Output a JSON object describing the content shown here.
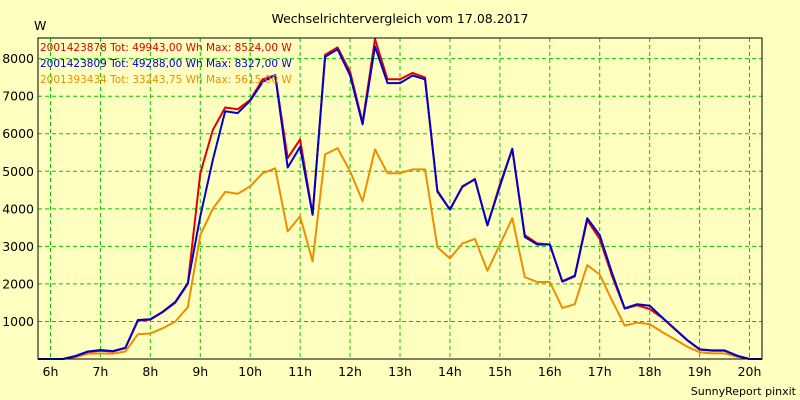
{
  "chart_data": {
    "type": "line",
    "title": "Wechselrichtervergleich vom 17.08.2017",
    "ylabel": "W",
    "ylim": [
      0,
      8550
    ],
    "yticks": [
      1000,
      2000,
      3000,
      4000,
      5000,
      6000,
      7000,
      8000
    ],
    "xlim": [
      5.75,
      20.25
    ],
    "xticks": [
      {
        "value": 6,
        "label": "6h"
      },
      {
        "value": 7,
        "label": "7h"
      },
      {
        "value": 8,
        "label": "8h"
      },
      {
        "value": 9,
        "label": "9h"
      },
      {
        "value": 10,
        "label": "10h"
      },
      {
        "value": 11,
        "label": "11h"
      },
      {
        "value": 12,
        "label": "12h"
      },
      {
        "value": 13,
        "label": "13h"
      },
      {
        "value": 14,
        "label": "14h"
      },
      {
        "value": 15,
        "label": "15h"
      },
      {
        "value": 16,
        "label": "16h"
      },
      {
        "value": 17,
        "label": "17h"
      },
      {
        "value": 18,
        "label": "18h"
      },
      {
        "value": 19,
        "label": "19h"
      },
      {
        "value": 20,
        "label": "20h"
      }
    ],
    "grid": true,
    "legend_position": "top-left",
    "series": [
      {
        "name": "2001423878",
        "legend": "2001423878 Tot: 49943,00 Wh Max: 8524,00 W",
        "color": "#e00000",
        "points": [
          [
            5.75,
            0
          ],
          [
            6,
            0
          ],
          [
            6.25,
            0
          ],
          [
            6.5,
            70
          ],
          [
            6.75,
            190
          ],
          [
            7,
            220
          ],
          [
            7.25,
            200
          ],
          [
            7.5,
            290
          ],
          [
            7.75,
            1020
          ],
          [
            8,
            1050
          ],
          [
            8.25,
            1250
          ],
          [
            8.5,
            1500
          ],
          [
            8.75,
            2000
          ],
          [
            9,
            4950
          ],
          [
            9.25,
            6100
          ],
          [
            9.5,
            6700
          ],
          [
            9.75,
            6650
          ],
          [
            10,
            6900
          ],
          [
            10.25,
            7450
          ],
          [
            10.5,
            7560
          ],
          [
            10.75,
            5350
          ],
          [
            11,
            5850
          ],
          [
            11.25,
            3850
          ],
          [
            11.5,
            8100
          ],
          [
            11.75,
            8300
          ],
          [
            12,
            7650
          ],
          [
            12.25,
            6300
          ],
          [
            12.5,
            8524
          ],
          [
            12.75,
            7450
          ],
          [
            13,
            7450
          ],
          [
            13.25,
            7620
          ],
          [
            13.5,
            7500
          ],
          [
            13.75,
            4450
          ],
          [
            14,
            3980
          ],
          [
            14.25,
            4580
          ],
          [
            14.5,
            4800
          ],
          [
            14.75,
            3560
          ],
          [
            15,
            4650
          ],
          [
            15.25,
            5600
          ],
          [
            15.5,
            3300
          ],
          [
            15.75,
            3080
          ],
          [
            16,
            3050
          ],
          [
            16.25,
            2060
          ],
          [
            16.5,
            2200
          ],
          [
            16.75,
            3700
          ],
          [
            17,
            3200
          ],
          [
            17.25,
            2200
          ],
          [
            17.5,
            1340
          ],
          [
            17.75,
            1430
          ],
          [
            18,
            1330
          ],
          [
            18.25,
            1100
          ],
          [
            18.5,
            800
          ],
          [
            18.75,
            500
          ],
          [
            19,
            250
          ],
          [
            19.25,
            220
          ],
          [
            19.5,
            220
          ],
          [
            19.75,
            80
          ],
          [
            20,
            0
          ],
          [
            20.25,
            0
          ]
        ]
      },
      {
        "name": "2001423809",
        "legend": "2001423809 Tot: 49288,00 Wh Max: 8327,00 W",
        "color": "#0000d0",
        "points": [
          [
            5.75,
            0
          ],
          [
            6,
            0
          ],
          [
            6.25,
            0
          ],
          [
            6.5,
            80
          ],
          [
            6.75,
            200
          ],
          [
            7,
            240
          ],
          [
            7.25,
            210
          ],
          [
            7.5,
            300
          ],
          [
            7.75,
            1040
          ],
          [
            8,
            1060
          ],
          [
            8.25,
            1260
          ],
          [
            8.5,
            1520
          ],
          [
            8.75,
            2020
          ],
          [
            9,
            3800
          ],
          [
            9.25,
            5300
          ],
          [
            9.5,
            6600
          ],
          [
            9.75,
            6550
          ],
          [
            10,
            6880
          ],
          [
            10.25,
            7380
          ],
          [
            10.5,
            7560
          ],
          [
            10.75,
            5100
          ],
          [
            11,
            5650
          ],
          [
            11.25,
            3840
          ],
          [
            11.5,
            8050
          ],
          [
            11.75,
            8250
          ],
          [
            12,
            7550
          ],
          [
            12.25,
            6250
          ],
          [
            12.5,
            8327
          ],
          [
            12.75,
            7350
          ],
          [
            13,
            7350
          ],
          [
            13.25,
            7550
          ],
          [
            13.5,
            7450
          ],
          [
            13.75,
            4480
          ],
          [
            14,
            3980
          ],
          [
            14.25,
            4600
          ],
          [
            14.5,
            4780
          ],
          [
            14.75,
            3560
          ],
          [
            15,
            4600
          ],
          [
            15.25,
            5600
          ],
          [
            15.5,
            3250
          ],
          [
            15.75,
            3050
          ],
          [
            16,
            3050
          ],
          [
            16.25,
            2070
          ],
          [
            16.5,
            2220
          ],
          [
            16.75,
            3750
          ],
          [
            17,
            3300
          ],
          [
            17.25,
            2280
          ],
          [
            17.5,
            1350
          ],
          [
            17.75,
            1460
          ],
          [
            18,
            1420
          ],
          [
            18.25,
            1110
          ],
          [
            18.5,
            810
          ],
          [
            18.75,
            510
          ],
          [
            19,
            260
          ],
          [
            19.25,
            230
          ],
          [
            19.5,
            230
          ],
          [
            19.75,
            90
          ],
          [
            20,
            0
          ],
          [
            20.25,
            0
          ]
        ]
      },
      {
        "name": "2001393434",
        "legend": "2001393434 Tot: 33243,75 Wh Max: 5615,00 W",
        "color": "#f08c00",
        "points": [
          [
            5.75,
            0
          ],
          [
            6,
            0
          ],
          [
            6.25,
            0
          ],
          [
            6.5,
            50
          ],
          [
            6.75,
            140
          ],
          [
            7,
            150
          ],
          [
            7.25,
            140
          ],
          [
            7.5,
            200
          ],
          [
            7.75,
            660
          ],
          [
            8,
            680
          ],
          [
            8.25,
            820
          ],
          [
            8.5,
            1000
          ],
          [
            8.75,
            1380
          ],
          [
            9,
            3300
          ],
          [
            9.25,
            4000
          ],
          [
            9.5,
            4450
          ],
          [
            9.75,
            4400
          ],
          [
            10,
            4600
          ],
          [
            10.25,
            4950
          ],
          [
            10.5,
            5080
          ],
          [
            10.75,
            3400
          ],
          [
            11,
            3800
          ],
          [
            11.25,
            2600
          ],
          [
            11.5,
            5450
          ],
          [
            11.75,
            5615
          ],
          [
            12,
            5000
          ],
          [
            12.25,
            4200
          ],
          [
            12.5,
            5580
          ],
          [
            12.75,
            4950
          ],
          [
            13,
            4950
          ],
          [
            13.25,
            5050
          ],
          [
            13.5,
            5050
          ],
          [
            13.75,
            2980
          ],
          [
            14,
            2680
          ],
          [
            14.25,
            3080
          ],
          [
            14.5,
            3200
          ],
          [
            14.75,
            2350
          ],
          [
            15,
            3050
          ],
          [
            15.25,
            3750
          ],
          [
            15.5,
            2180
          ],
          [
            15.75,
            2050
          ],
          [
            16,
            2050
          ],
          [
            16.25,
            1360
          ],
          [
            16.5,
            1460
          ],
          [
            16.75,
            2500
          ],
          [
            17,
            2250
          ],
          [
            17.25,
            1550
          ],
          [
            17.5,
            890
          ],
          [
            17.75,
            970
          ],
          [
            18,
            930
          ],
          [
            18.25,
            720
          ],
          [
            18.5,
            530
          ],
          [
            18.75,
            330
          ],
          [
            19,
            180
          ],
          [
            19.25,
            150
          ],
          [
            19.5,
            150
          ],
          [
            19.75,
            60
          ],
          [
            20,
            0
          ],
          [
            20.25,
            0
          ]
        ]
      }
    ]
  },
  "footer": "SunnyReport pinxit"
}
